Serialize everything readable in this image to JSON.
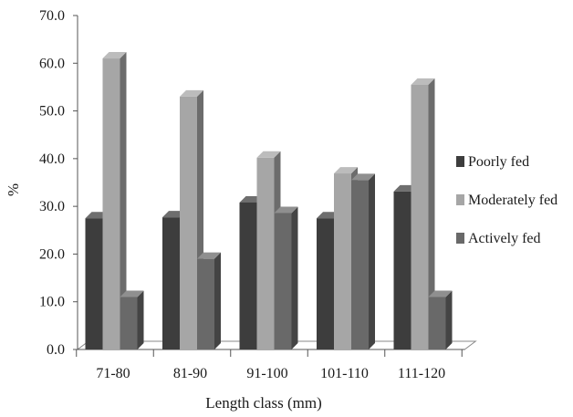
{
  "chart_data": {
    "type": "bar",
    "title": "",
    "xlabel": "Length class (mm)",
    "ylabel": "%",
    "ylim": [
      0,
      70
    ],
    "y_ticks": [
      "0.0",
      "10.0",
      "20.0",
      "30.0",
      "40.0",
      "50.0",
      "60.0",
      "70.0"
    ],
    "categories": [
      "71-80",
      "81-90",
      "91-100",
      "101-110",
      "111-120"
    ],
    "series": [
      {
        "name": "Poorly fed",
        "color": "#3d3d3d",
        "values": [
          27.5,
          27.7,
          30.8,
          27.5,
          33.1
        ]
      },
      {
        "name": "Moderately fed",
        "color": "#a6a6a6",
        "values": [
          61.0,
          53.0,
          40.2,
          36.9,
          55.5
        ]
      },
      {
        "name": "Actively fed",
        "color": "#696969",
        "values": [
          11.0,
          19.0,
          28.6,
          35.5,
          11.0
        ]
      }
    ],
    "legend_position": "right",
    "grid": false,
    "style": "3d-columns"
  }
}
